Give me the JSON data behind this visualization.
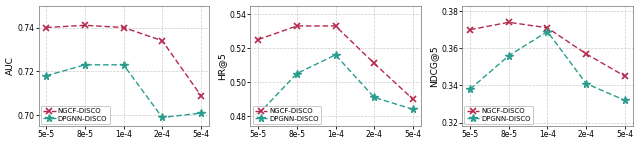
{
  "x_labels": [
    "5e-5",
    "8e-5",
    "1e-4",
    "2e-4",
    "5e-4"
  ],
  "plots": [
    {
      "ylabel": "AUC",
      "ylim": [
        0.695,
        0.75
      ],
      "yticks": [
        0.7,
        0.72,
        0.74
      ],
      "ngcf": [
        0.74,
        0.741,
        0.74,
        0.734,
        0.709
      ],
      "dpgnn": [
        0.718,
        0.723,
        0.723,
        0.699,
        0.701
      ]
    },
    {
      "ylabel": "HR@5",
      "ylim": [
        0.474,
        0.545
      ],
      "yticks": [
        0.48,
        0.5,
        0.52,
        0.54
      ],
      "ngcf": [
        0.525,
        0.533,
        0.533,
        0.511,
        0.49
      ],
      "dpgnn": [
        0.481,
        0.505,
        0.516,
        0.491,
        0.484
      ]
    },
    {
      "ylabel": "NDCG@5",
      "ylim": [
        0.318,
        0.383
      ],
      "yticks": [
        0.32,
        0.34,
        0.36,
        0.38
      ],
      "ngcf": [
        0.37,
        0.374,
        0.371,
        0.357,
        0.345
      ],
      "dpgnn": [
        0.338,
        0.356,
        0.369,
        0.341,
        0.332
      ]
    }
  ],
  "ngcf_color": "#B5294E",
  "dpgnn_color": "#2A9D8F",
  "ngcf_label": "NGCF-DISCO",
  "dpgnn_label": "DPGNN-DISCO",
  "marker_ngcf": "x",
  "marker_dpgnn": "*",
  "background_color": "#ffffff",
  "grid_color": "#cccccc"
}
